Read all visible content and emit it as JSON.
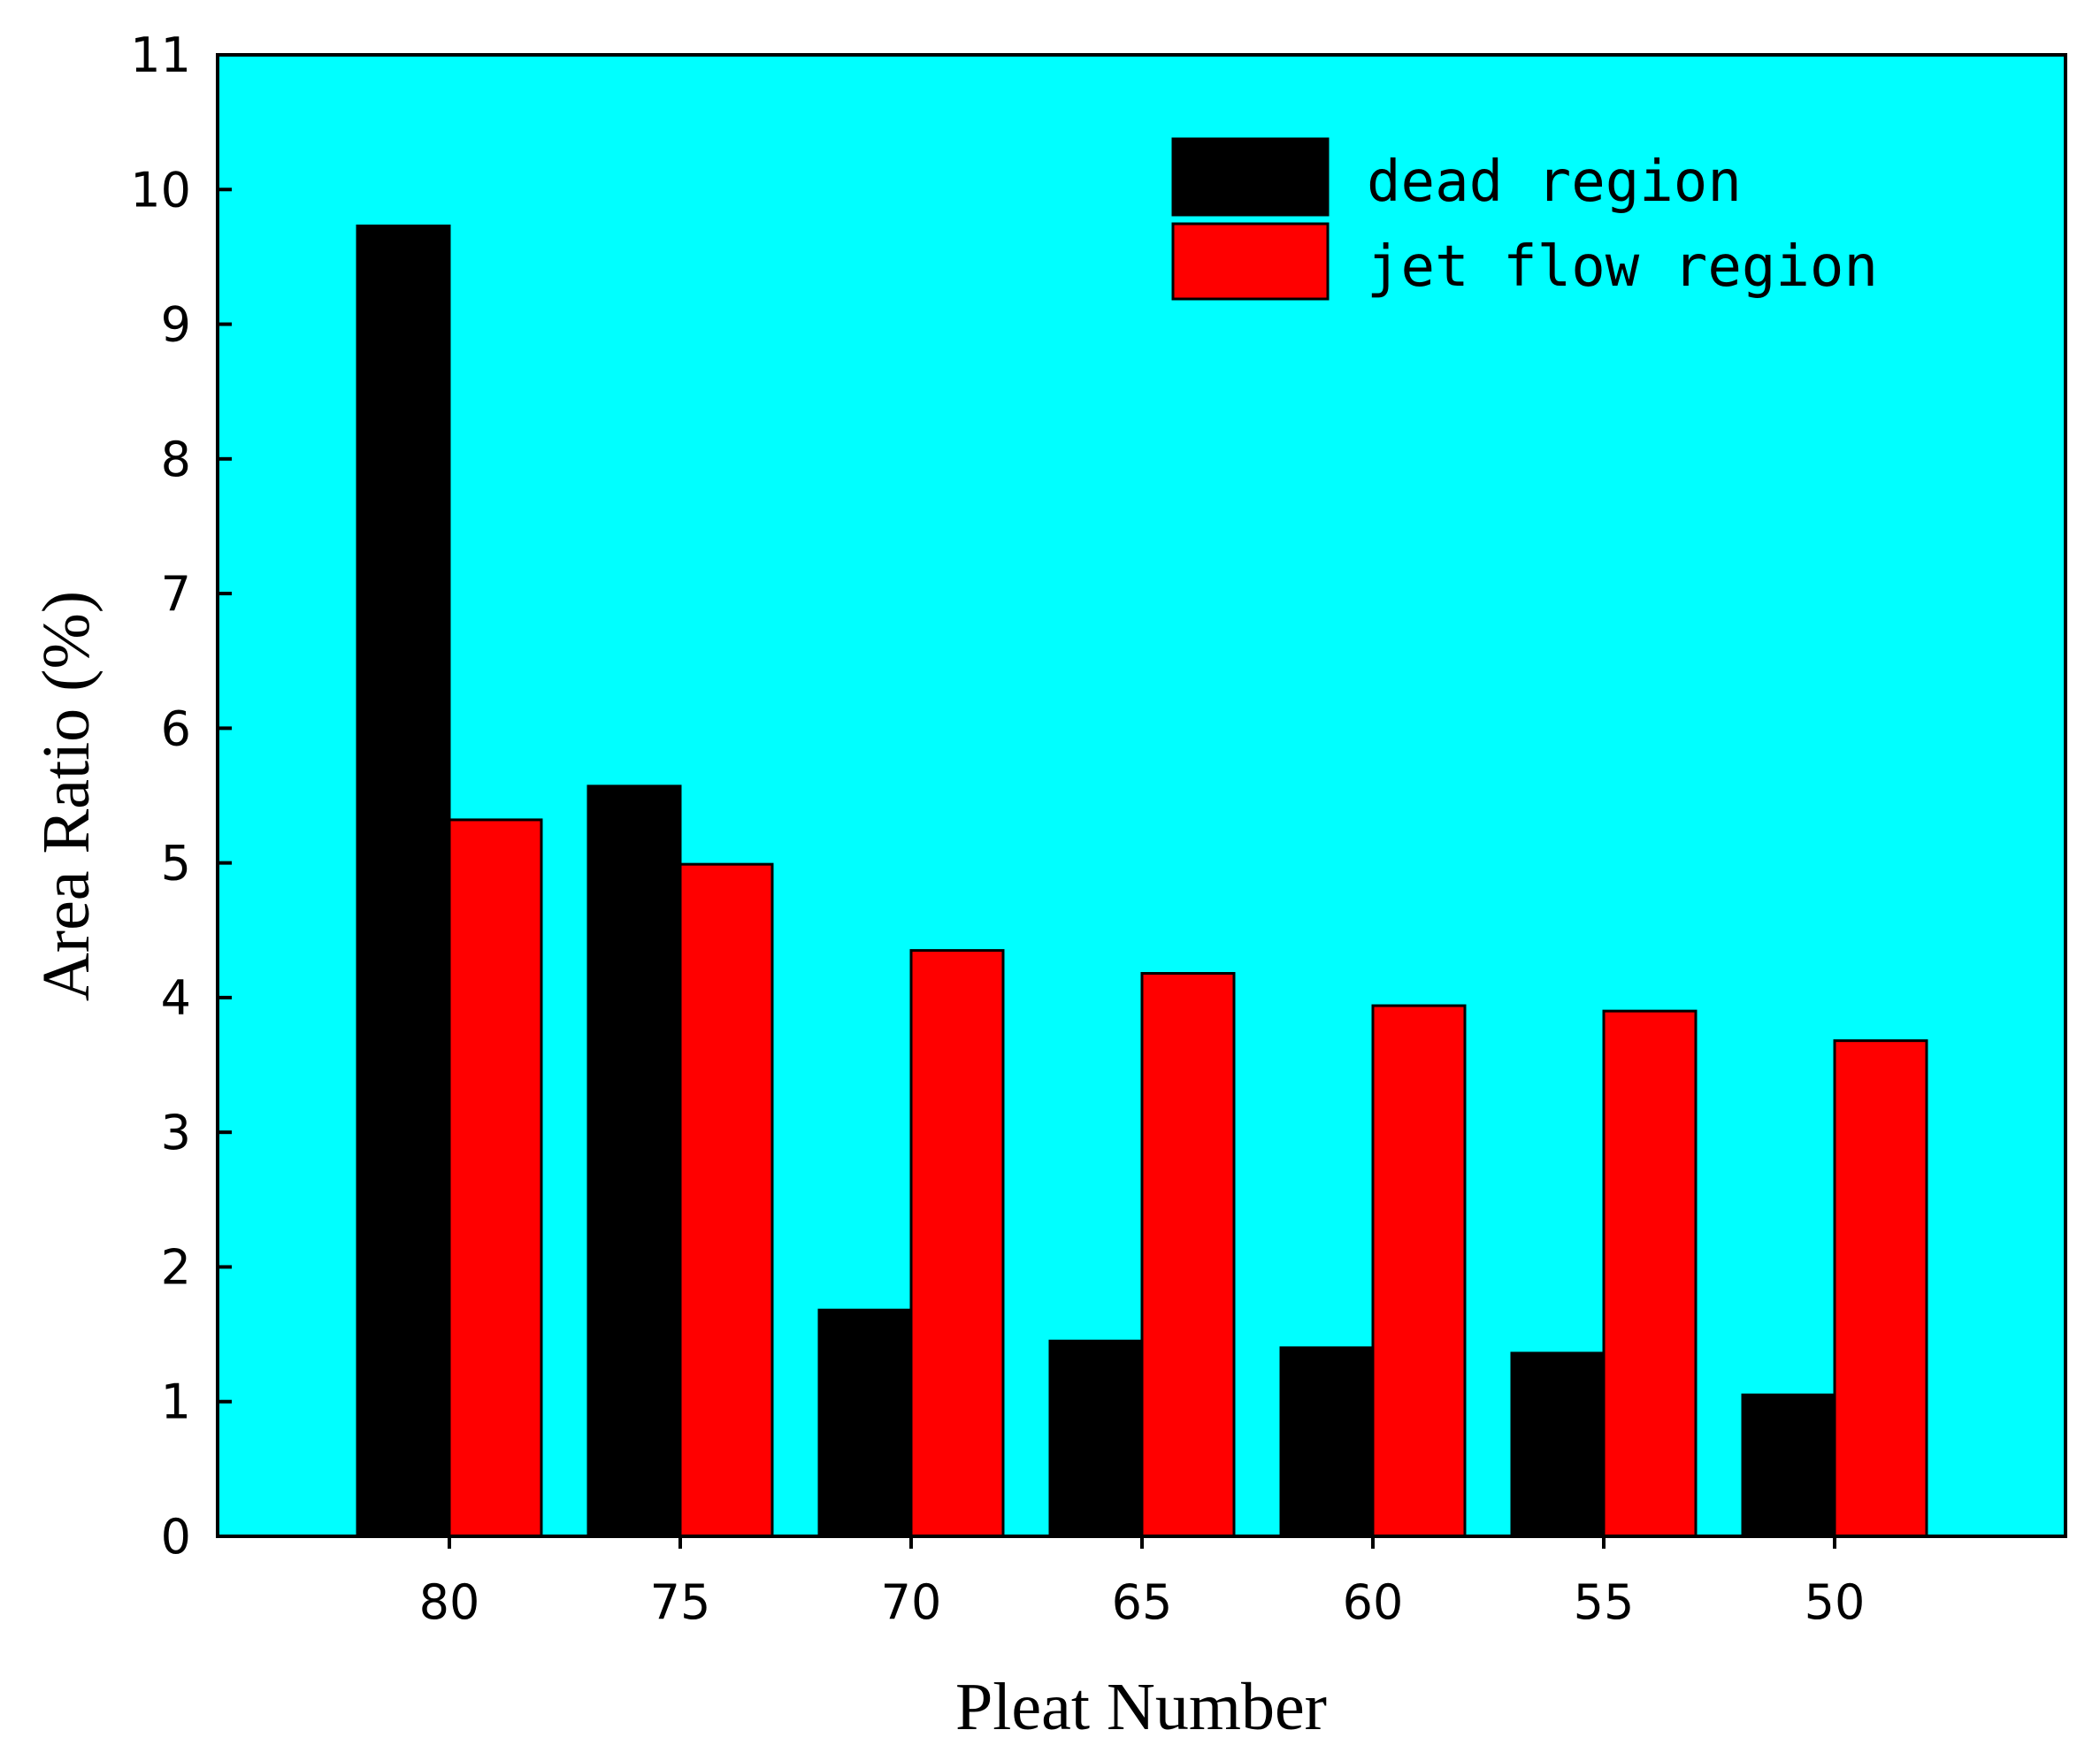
{
  "chart_data": {
    "type": "bar",
    "title": "",
    "xlabel": "Pleat Number",
    "ylabel": "Area Ratio (%)",
    "categories": [
      "80",
      "75",
      "70",
      "65",
      "60",
      "55",
      "50"
    ],
    "series": [
      {
        "name": "dead region",
        "color": "#000000",
        "values": [
          9.73,
          5.57,
          1.68,
          1.45,
          1.4,
          1.36,
          1.05
        ]
      },
      {
        "name": "jet flow region",
        "color": "#ff0000",
        "values": [
          5.32,
          4.99,
          4.35,
          4.18,
          3.94,
          3.9,
          3.68
        ]
      }
    ],
    "ylim": [
      0,
      11
    ],
    "yticks": [
      0,
      1,
      2,
      3,
      4,
      5,
      6,
      7,
      8,
      9,
      10,
      11
    ],
    "background": "#00ffff",
    "grid": false,
    "legend_position": "top-right"
  }
}
